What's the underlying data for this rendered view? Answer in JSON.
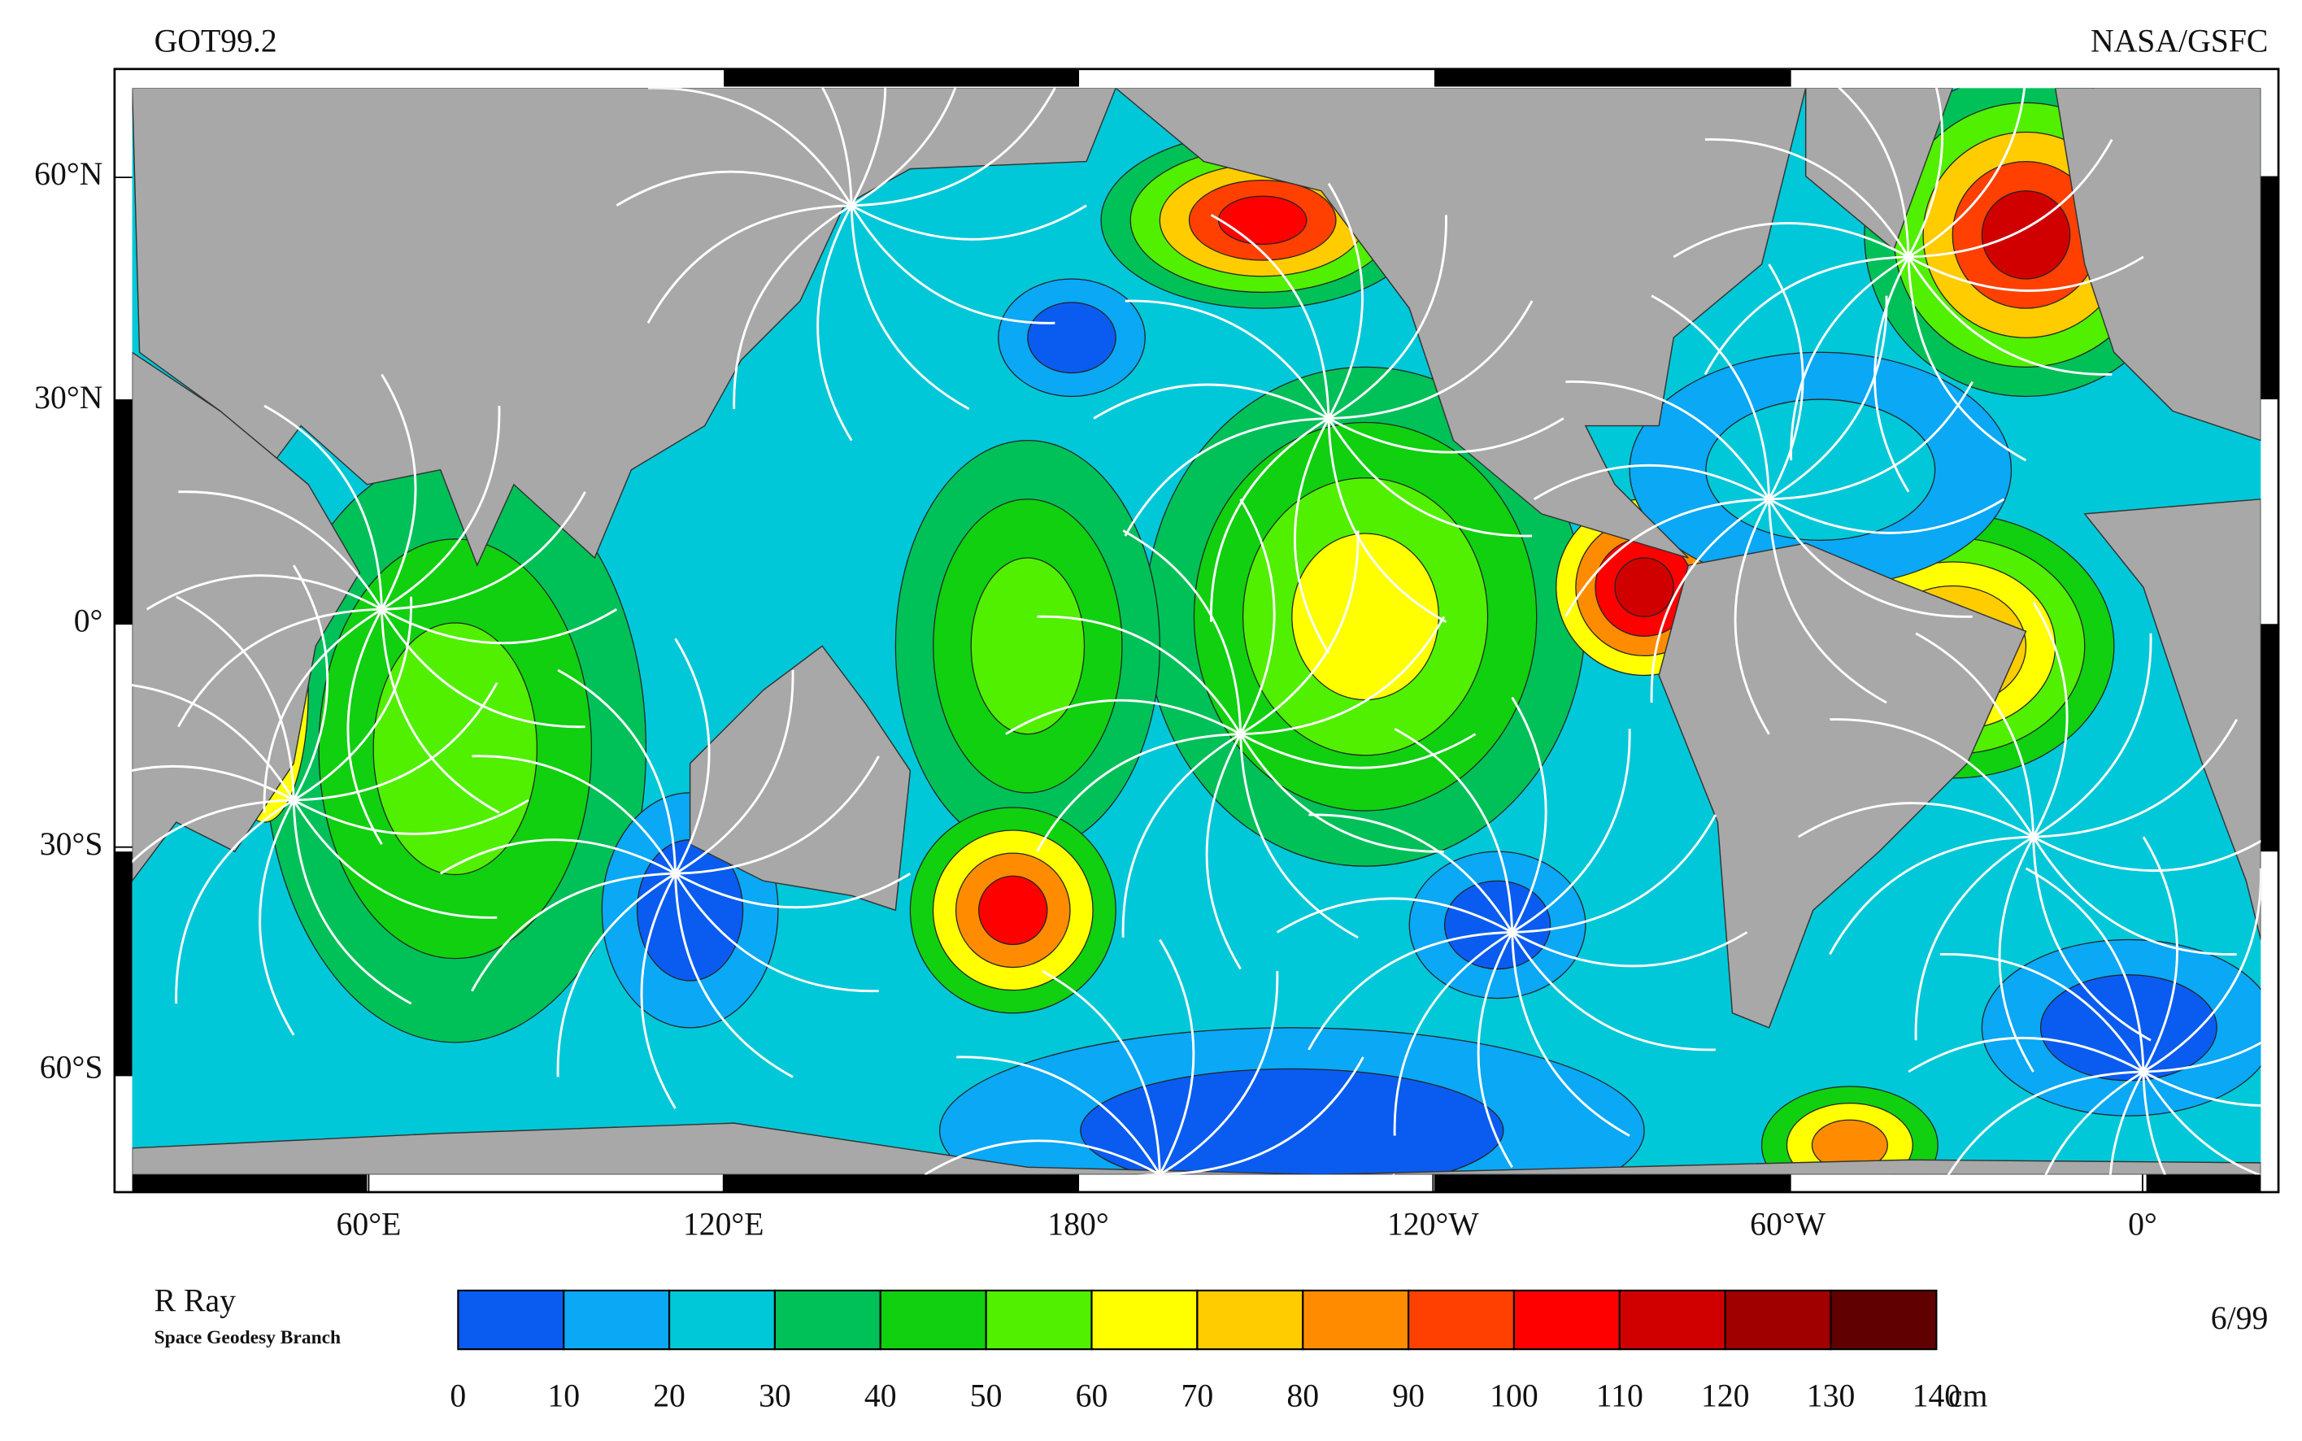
{
  "header": {
    "title": "GOT99.2",
    "source": "NASA/GSFC"
  },
  "map": {
    "xlim": [
      20,
      380
    ],
    "ylim": [
      -74,
      72
    ],
    "lat_ticks": [
      {
        "value": 60,
        "label": "60°N"
      },
      {
        "value": 30,
        "label": "30°N"
      },
      {
        "value": 0,
        "label": "0°"
      },
      {
        "value": -30,
        "label": "30°S"
      },
      {
        "value": -60,
        "label": "60°S"
      }
    ],
    "lon_ticks": [
      {
        "value": 60,
        "label": "60°E"
      },
      {
        "value": 120,
        "label": "120°E"
      },
      {
        "value": 180,
        "label": "180°"
      },
      {
        "value": 240,
        "label": "120°W"
      },
      {
        "value": 300,
        "label": "60°W"
      },
      {
        "value": 360,
        "label": "0°"
      }
    ]
  },
  "colorbar": {
    "bins": [
      0,
      10,
      20,
      30,
      40,
      50,
      60,
      70,
      80,
      90,
      100,
      110,
      120,
      130,
      140
    ],
    "colors": [
      "#0a5cf0",
      "#0aa8f5",
      "#00c8d8",
      "#00c058",
      "#10d010",
      "#50f000",
      "#ffff00",
      "#ffcc00",
      "#ff8c00",
      "#ff4000",
      "#ff0000",
      "#d00000",
      "#a00000",
      "#600000"
    ],
    "unit": "cm"
  },
  "footer": {
    "author": "R Ray",
    "group": "Space Geodesy Branch",
    "date": "6/99"
  }
}
